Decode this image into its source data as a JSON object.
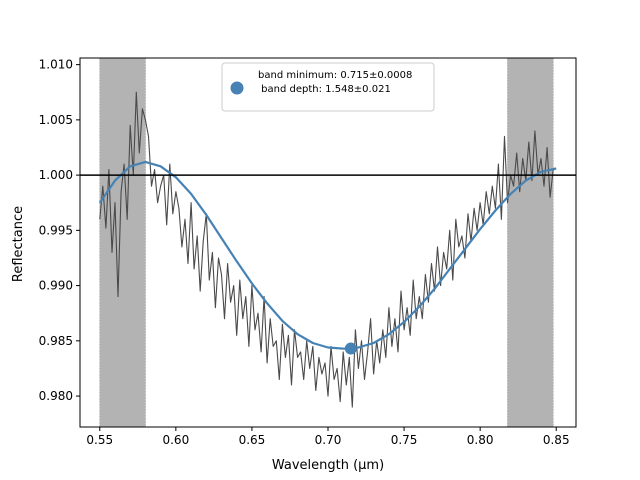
{
  "chart_data": {
    "type": "line",
    "title": "",
    "xlabel": "Wavelength (μm)",
    "ylabel": "Reflectance",
    "xlim": [
      0.537,
      0.863
    ],
    "ylim": [
      0.9772,
      1.0106
    ],
    "xticks": [
      0.55,
      0.6,
      0.65,
      0.7,
      0.75,
      0.8,
      0.85
    ],
    "xtick_labels": [
      "0.55",
      "0.60",
      "0.65",
      "0.70",
      "0.75",
      "0.80",
      "0.85"
    ],
    "yticks": [
      0.98,
      0.985,
      0.99,
      0.995,
      1.0,
      1.005,
      1.01
    ],
    "ytick_labels": [
      "0.980",
      "0.985",
      "0.990",
      "0.995",
      "1.000",
      "1.005",
      "1.010"
    ],
    "grid": false,
    "legend_position": "top-center",
    "continuum_line": 1.0,
    "shaded_regions": [
      [
        0.55,
        0.58
      ],
      [
        0.818,
        0.848
      ]
    ],
    "legend": {
      "line1": "band minimum: 0.715±0.0008",
      "line2": " band depth: 1.548±0.021"
    },
    "band_minimum": {
      "x": 0.715,
      "y": 0.9843
    },
    "colors": {
      "spectrum": "#4a4a4a",
      "fit": "#4682b4",
      "shade": "#b3b3b3",
      "continuum": "#000000"
    },
    "series": [
      {
        "kind": "polynomial_fit",
        "x": [
          0.55,
          0.56,
          0.57,
          0.58,
          0.59,
          0.6,
          0.61,
          0.62,
          0.63,
          0.64,
          0.65,
          0.66,
          0.67,
          0.68,
          0.69,
          0.7,
          0.71,
          0.715,
          0.72,
          0.73,
          0.74,
          0.75,
          0.76,
          0.77,
          0.78,
          0.79,
          0.8,
          0.81,
          0.82,
          0.83,
          0.84,
          0.85
        ],
        "values": [
          0.9975,
          0.9995,
          1.0008,
          1.0012,
          1.0008,
          0.9998,
          0.9983,
          0.9964,
          0.9943,
          0.9922,
          0.9902,
          0.9884,
          0.9868,
          0.9856,
          0.9848,
          0.9844,
          0.9843,
          0.9843,
          0.9844,
          0.9848,
          0.9856,
          0.9867,
          0.9881,
          0.9897,
          0.9915,
          0.9933,
          0.9951,
          0.9968,
          0.9983,
          0.9995,
          1.0003,
          1.0006
        ]
      },
      {
        "kind": "spectrum",
        "x": [
          0.55,
          0.552,
          0.554,
          0.556,
          0.558,
          0.56,
          0.562,
          0.564,
          0.566,
          0.568,
          0.57,
          0.572,
          0.574,
          0.576,
          0.578,
          0.58,
          0.582,
          0.584,
          0.586,
          0.588,
          0.59,
          0.592,
          0.594,
          0.596,
          0.598,
          0.6,
          0.602,
          0.604,
          0.606,
          0.608,
          0.61,
          0.612,
          0.614,
          0.616,
          0.618,
          0.62,
          0.622,
          0.624,
          0.626,
          0.628,
          0.63,
          0.632,
          0.634,
          0.636,
          0.638,
          0.64,
          0.642,
          0.644,
          0.646,
          0.648,
          0.65,
          0.652,
          0.654,
          0.656,
          0.658,
          0.66,
          0.662,
          0.664,
          0.666,
          0.668,
          0.67,
          0.672,
          0.674,
          0.676,
          0.678,
          0.68,
          0.682,
          0.684,
          0.686,
          0.688,
          0.69,
          0.692,
          0.694,
          0.696,
          0.698,
          0.7,
          0.702,
          0.704,
          0.706,
          0.708,
          0.71,
          0.712,
          0.714,
          0.716,
          0.718,
          0.72,
          0.722,
          0.724,
          0.726,
          0.728,
          0.73,
          0.732,
          0.734,
          0.736,
          0.738,
          0.74,
          0.742,
          0.744,
          0.746,
          0.748,
          0.75,
          0.752,
          0.754,
          0.756,
          0.758,
          0.76,
          0.762,
          0.764,
          0.766,
          0.768,
          0.77,
          0.772,
          0.774,
          0.776,
          0.778,
          0.78,
          0.782,
          0.784,
          0.786,
          0.788,
          0.79,
          0.792,
          0.794,
          0.796,
          0.798,
          0.8,
          0.802,
          0.804,
          0.806,
          0.808,
          0.81,
          0.812,
          0.814,
          0.816,
          0.818,
          0.82,
          0.822,
          0.824,
          0.826,
          0.828,
          0.83,
          0.832,
          0.834,
          0.836,
          0.838,
          0.84,
          0.842,
          0.844,
          0.846,
          0.848
        ],
        "values": [
          0.996,
          0.999,
          0.9952,
          1.0005,
          0.993,
          0.9975,
          0.989,
          0.9985,
          1.001,
          0.996,
          1.0045,
          1.0,
          1.0075,
          1.002,
          1.006,
          1.005,
          1.0035,
          0.999,
          1.0005,
          0.9975,
          0.999,
          1.0,
          0.9955,
          1.001,
          0.9965,
          0.9985,
          0.997,
          0.9935,
          0.996,
          0.992,
          0.9975,
          0.9915,
          0.9945,
          0.9895,
          0.994,
          0.9965,
          0.9905,
          0.993,
          0.988,
          0.9925,
          0.991,
          0.987,
          0.992,
          0.9885,
          0.99,
          0.9855,
          0.9905,
          0.987,
          0.989,
          0.9845,
          0.99,
          0.986,
          0.9875,
          0.984,
          0.989,
          0.983,
          0.987,
          0.9845,
          0.985,
          0.9815,
          0.9865,
          0.9835,
          0.9855,
          0.981,
          0.986,
          0.9835,
          0.984,
          0.9815,
          0.985,
          0.9825,
          0.9845,
          0.9805,
          0.9835,
          0.982,
          0.983,
          0.98,
          0.9845,
          0.9815,
          0.9825,
          0.9795,
          0.984,
          0.981,
          0.9835,
          0.979,
          0.986,
          0.9825,
          0.985,
          0.9815,
          0.984,
          0.987,
          0.982,
          0.985,
          0.983,
          0.986,
          0.9835,
          0.988,
          0.9845,
          0.987,
          0.984,
          0.9895,
          0.986,
          0.988,
          0.9855,
          0.9905,
          0.987,
          0.989,
          0.987,
          0.991,
          0.9885,
          0.992,
          0.9895,
          0.9935,
          0.99,
          0.993,
          0.9915,
          0.995,
          0.9905,
          0.996,
          0.9935,
          0.9945,
          0.9925,
          0.9965,
          0.994,
          0.997,
          0.995,
          0.9975,
          0.9955,
          0.9985,
          0.9965,
          0.999,
          0.997,
          1.001,
          0.996,
          1.0035,
          0.9975,
          1.0,
          0.999,
          1.002,
          0.9985,
          1.0015,
          0.9995,
          1.003,
          0.9995,
          1.004,
          1.0,
          1.0015,
          0.999,
          1.0025,
          0.998,
          1.0005
        ]
      }
    ]
  }
}
